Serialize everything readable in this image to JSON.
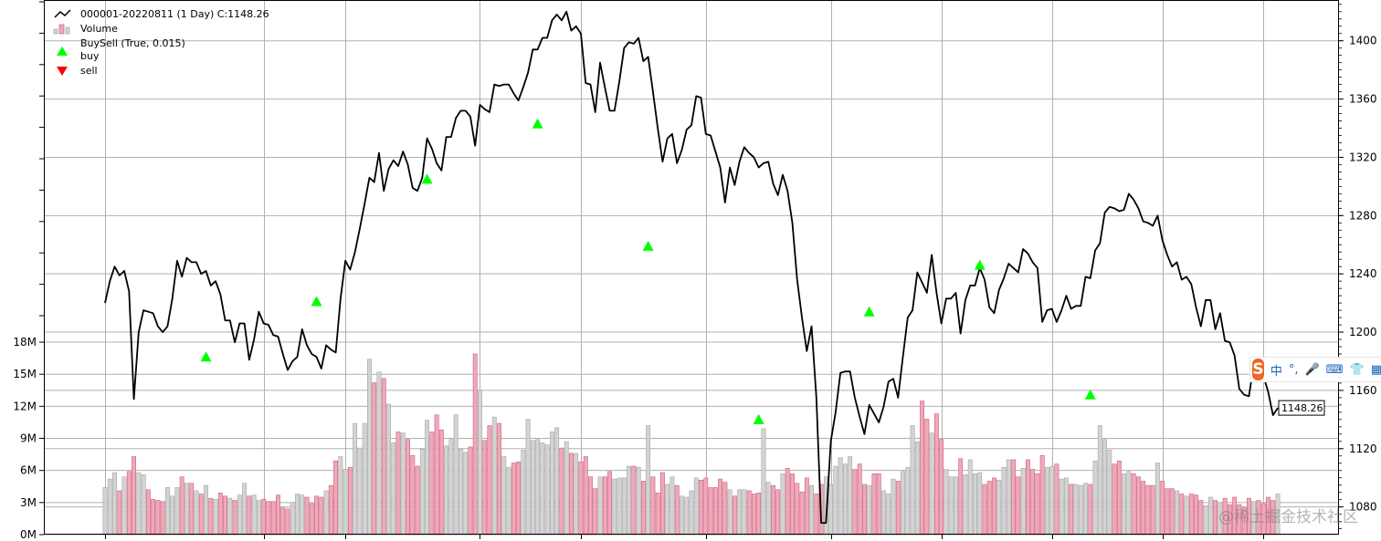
{
  "chart_data": {
    "type": "line",
    "legend_position": "top-left",
    "grid": true,
    "price": {
      "name": "000001-20220811 (1 Day) C:1148.26",
      "color": "#000000",
      "ylim": [
        1061,
        1428
      ],
      "ticks": [
        1080,
        1120,
        1160,
        1200,
        1240,
        1280,
        1320,
        1360,
        1400
      ],
      "tick_labels": [
        "1080",
        "1120",
        "1160",
        "1200",
        "1240",
        "1280",
        "1320",
        "1360",
        "1400"
      ],
      "last_value_label": "1148.26",
      "values": [
        1220,
        1235,
        1245,
        1239,
        1242,
        1228,
        1154,
        1200,
        1215,
        1214,
        1213,
        1204,
        1200,
        1204,
        1223,
        1249,
        1238,
        1251,
        1248,
        1248,
        1240,
        1242,
        1232,
        1235,
        1226,
        1208,
        1208,
        1193,
        1206,
        1206,
        1181,
        1195,
        1214,
        1206,
        1205,
        1198,
        1197,
        1185,
        1174,
        1180,
        1183,
        1202,
        1191,
        1185,
        1183,
        1175,
        1191,
        1188,
        1186,
        1223,
        1249,
        1243,
        1255,
        1271,
        1288,
        1306,
        1303,
        1323,
        1297,
        1312,
        1318,
        1314,
        1324,
        1315,
        1299,
        1297,
        1306,
        1333,
        1326,
        1316,
        1311,
        1334,
        1334,
        1347,
        1352,
        1352,
        1348,
        1328,
        1356,
        1353,
        1351,
        1370,
        1369,
        1370,
        1370,
        1364,
        1359,
        1368,
        1378,
        1394,
        1394,
        1402,
        1402,
        1414,
        1418,
        1414,
        1420,
        1407,
        1410,
        1405,
        1371,
        1370,
        1351,
        1385,
        1368,
        1352,
        1352,
        1372,
        1395,
        1399,
        1398,
        1402,
        1386,
        1389,
        1365,
        1340,
        1317,
        1333,
        1336,
        1316,
        1325,
        1339,
        1342,
        1362,
        1361,
        1336,
        1335,
        1324,
        1313,
        1289,
        1313,
        1301,
        1317,
        1327,
        1323,
        1320,
        1313,
        1316,
        1317,
        1302,
        1294,
        1308,
        1297,
        1275,
        1236,
        1210,
        1187,
        1204,
        1155,
        1069,
        1069,
        1125,
        1145,
        1172,
        1173,
        1173,
        1155,
        1142,
        1130,
        1150,
        1144,
        1138,
        1149,
        1166,
        1168,
        1155,
        1183,
        1210,
        1215,
        1241,
        1234,
        1227,
        1253,
        1227,
        1206,
        1223,
        1223,
        1227,
        1199,
        1222,
        1232,
        1232,
        1244,
        1236,
        1217,
        1213,
        1229,
        1237,
        1247,
        1244,
        1241,
        1257,
        1254,
        1248,
        1244,
        1207,
        1215,
        1216,
        1207,
        1215,
        1225,
        1216,
        1218,
        1218,
        1238,
        1237,
        1256,
        1261,
        1282,
        1286,
        1285,
        1283,
        1284,
        1295,
        1291,
        1285,
        1276,
        1275,
        1273,
        1280,
        1263,
        1253,
        1245,
        1248,
        1236,
        1238,
        1233,
        1217,
        1204,
        1222,
        1222,
        1202,
        1213,
        1194,
        1193,
        1184,
        1161,
        1157,
        1156,
        1178,
        1173,
        1170,
        1159,
        1143,
        1148
      ]
    },
    "volume": {
      "name": "Volume",
      "ylim": [
        0,
        50
      ],
      "ticks": [
        0,
        3,
        6,
        9,
        12,
        15,
        18
      ],
      "tick_labels": [
        "0M",
        "3M",
        "6M",
        "9M",
        "12M",
        "15M",
        "18M"
      ],
      "up_color": "#d3d3d3",
      "down_color": "#f0a8ba",
      "values": [
        4.4,
        5.2,
        5.8,
        4.1,
        5.4,
        5.9,
        7.3,
        5.8,
        5.6,
        4.2,
        3.3,
        3.2,
        3.1,
        4.4,
        3.6,
        4.4,
        5.4,
        4.8,
        4.8,
        4.1,
        3.8,
        4.6,
        3.4,
        3.3,
        3.9,
        3.6,
        3.4,
        3.2,
        3.7,
        4.8,
        3.6,
        3.7,
        3.2,
        3.3,
        3.1,
        3.1,
        3.7,
        2.5,
        2.4,
        3.0,
        3.8,
        3.7,
        3.5,
        2.9,
        3.6,
        3.5,
        4.1,
        4.6,
        6.9,
        7.3,
        6.1,
        6.3,
        10.4,
        8.1,
        10.4,
        16.4,
        14.2,
        15.2,
        14.6,
        12.2,
        8.6,
        9.6,
        9.5,
        8.9,
        7.4,
        6.4,
        8.0,
        10.7,
        9.6,
        11.2,
        9.8,
        8.3,
        8.9,
        11.2,
        8.0,
        7.7,
        8.2,
        16.9,
        13.5,
        8.8,
        10.2,
        11.0,
        10.4,
        7.3,
        6.3,
        6.7,
        6.8,
        7.9,
        10.8,
        8.8,
        8.9,
        8.6,
        8.4,
        9.6,
        10.0,
        8.1,
        8.7,
        7.6,
        7.6,
        6.8,
        7.3,
        5.4,
        4.3,
        5.4,
        5.4,
        5.9,
        5.2,
        5.3,
        5.3,
        6.4,
        6.4,
        6.3,
        5.0,
        10.2,
        5.4,
        3.9,
        5.8,
        4.7,
        5.4,
        4.6,
        3.6,
        3.5,
        4.1,
        5.3,
        5.1,
        5.3,
        4.4,
        4.4,
        5.2,
        4.9,
        4.2,
        3.6,
        4.2,
        4.2,
        4.1,
        3.8,
        3.9,
        9.9,
        4.9,
        4.6,
        4.2,
        5.7,
        6.2,
        5.7,
        4.8,
        4.0,
        5.3,
        4.6,
        3.8,
        4.7,
        5.4,
        4.7,
        6.4,
        7.2,
        6.6,
        7.3,
        6.1,
        6.6,
        4.7,
        4.6,
        5.7,
        5.7,
        4.1,
        3.8,
        5.2,
        5.0,
        5.9,
        6.3,
        10.2,
        8.7,
        12.5,
        10.8,
        9.5,
        11.3,
        8.9,
        6.1,
        5.4,
        5.4,
        7.1,
        5.6,
        7.0,
        5.7,
        5.8,
        4.7,
        5.0,
        5.3,
        5.1,
        6.3,
        7.0,
        7.0,
        5.4,
        6.2,
        7.0,
        6.1,
        5.7,
        7.4,
        6.3,
        6.4,
        6.6,
        5.2,
        5.3,
        4.7,
        4.7,
        4.6,
        4.8,
        4.7,
        6.9,
        10.2,
        8.9,
        7.9,
        6.6,
        6.9,
        5.7,
        5.9,
        5.7,
        5.4,
        5.0,
        4.6,
        4.6,
        6.7,
        5.0,
        4.3,
        4.3,
        4.1,
        3.8,
        3.6,
        3.8,
        3.7,
        3.2,
        2.7,
        3.5,
        3.2,
        3.0,
        3.4,
        2.8,
        3.5,
        2.8,
        2.5,
        3.4,
        3.1,
        3.2,
        2.9,
        3.5,
        3.2,
        3.8
      ]
    },
    "buy_signals": {
      "name": "buy",
      "color": "#00ff00",
      "points": [
        [
          21,
          1183
        ],
        [
          44,
          1221
        ],
        [
          67,
          1305
        ],
        [
          90,
          1343
        ],
        [
          113,
          1259
        ],
        [
          136,
          1140
        ],
        [
          159,
          1214
        ],
        [
          182,
          1246
        ],
        [
          205,
          1157
        ]
      ]
    },
    "sell_signals": {
      "name": "sell",
      "color": "#ff0000",
      "points": []
    },
    "legend": [
      {
        "id": "price",
        "label": "000001-20220811 (1 Day) C:1148.26"
      },
      {
        "id": "volume",
        "label": "Volume"
      },
      {
        "id": "buysell",
        "label": "BuySell (True, 0.015)"
      },
      {
        "id": "buy",
        "label": "buy"
      },
      {
        "id": "sell",
        "label": "sell"
      }
    ]
  },
  "ime_toolbar": {
    "logo": "S",
    "items": [
      "中",
      "°,",
      "🎤",
      "⌨",
      "👕",
      "▦"
    ],
    "icons": [
      "sogou-logo-icon",
      "chinese-mode-icon",
      "punctuation-icon",
      "microphone-icon",
      "keyboard-icon",
      "skin-icon",
      "toolbox-icon"
    ]
  },
  "watermark": "@稀土掘金技术社区"
}
